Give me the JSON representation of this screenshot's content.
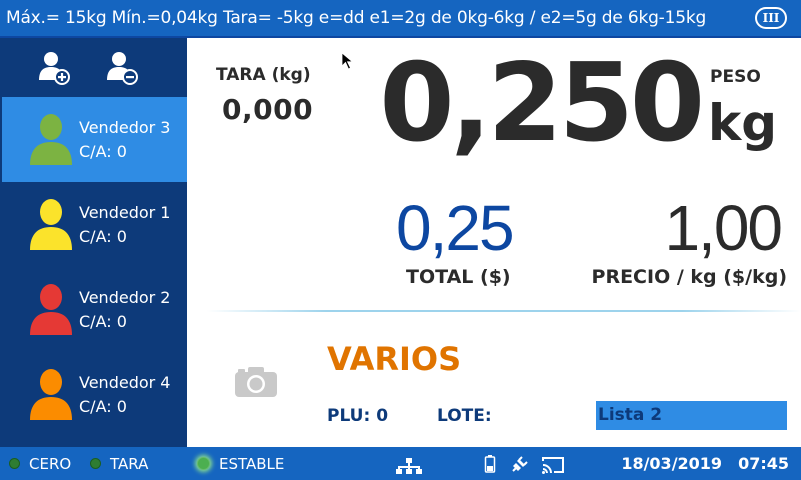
{
  "header": {
    "specs": "Máx.= 15kg  Mín.=0,04kg  Tara= -5kg  e=dd  e1=2g de 0kg-6kg / e2=5g de 6kg-15kg",
    "mode_badge": "III"
  },
  "sidebar": {
    "actions": [
      {
        "name": "add-user-icon"
      },
      {
        "name": "remove-user-icon"
      }
    ],
    "vendors": [
      {
        "name": "Vendedor 3",
        "count": "C/A: 0",
        "color": "#7cb342",
        "selected": true
      },
      {
        "name": "Vendedor 1",
        "count": "C/A: 0",
        "color": "#fbe32b",
        "selected": false
      },
      {
        "name": "Vendedor 2",
        "count": "C/A: 0",
        "color": "#e53935",
        "selected": false
      },
      {
        "name": "Vendedor 4",
        "count": "C/A: 0",
        "color": "#fb8c00",
        "selected": false
      }
    ]
  },
  "weighing": {
    "tare_label": "TARA (kg)",
    "tare_value": "0,000",
    "weight_label": "PESO",
    "weight_value": "0,250",
    "weight_unit": "kg",
    "total_value": "0,25",
    "total_label": "TOTAL ($)",
    "price_value": "1,00",
    "price_label": "PRECIO / kg ($/kg)"
  },
  "product": {
    "name": "VARIOS",
    "plu": "PLU: 0",
    "lote": "LOTE:",
    "list": "Lista 2"
  },
  "status": {
    "zero": "CERO",
    "tare": "TARA",
    "stable": "ESTABLE",
    "date": "18/03/2019",
    "time": "07:45"
  },
  "colors": {
    "header_bg": "#1565c0",
    "sidebar_bg": "#0d3a7a",
    "selected_bg": "#2f8ce4",
    "product_name": "#e07400",
    "total_value": "#0d47a1"
  }
}
